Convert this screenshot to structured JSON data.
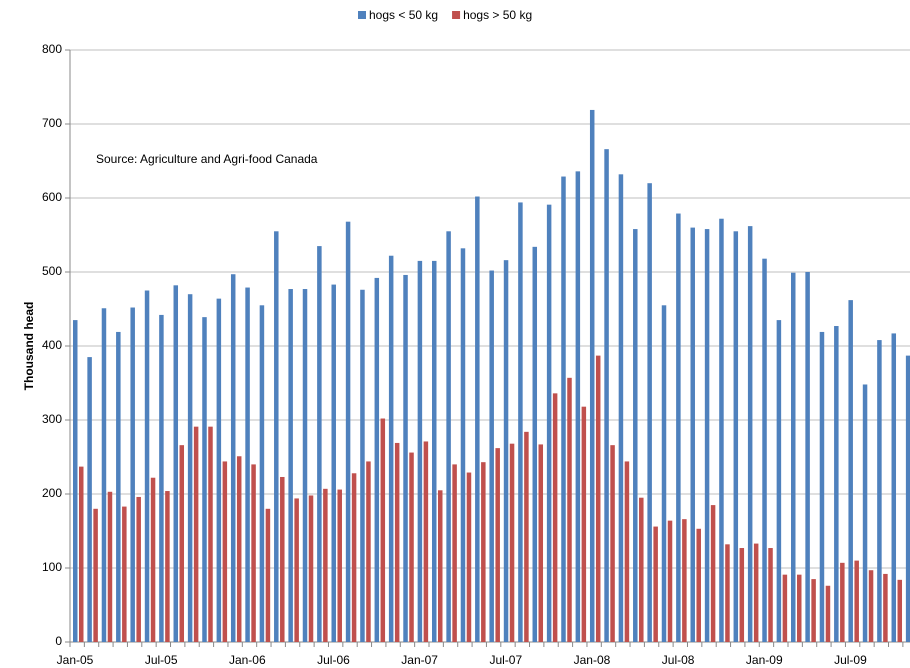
{
  "chart_data": {
    "type": "bar",
    "y_label": "Thousand head",
    "annotation": "Source: Agriculture and Agri-food Canada",
    "categories": [
      "Jan-05",
      null,
      null,
      null,
      null,
      null,
      "Jul-05",
      null,
      null,
      null,
      null,
      null,
      "Jan-06",
      null,
      null,
      null,
      null,
      null,
      "Jul-06",
      null,
      null,
      null,
      null,
      null,
      "Jan-07",
      null,
      null,
      null,
      null,
      null,
      "Jul-07",
      null,
      null,
      null,
      null,
      null,
      "Jan-08",
      null,
      null,
      null,
      null,
      null,
      "Jul-08",
      null,
      null,
      null,
      null,
      null,
      "Jan-09",
      null,
      null,
      null,
      null,
      null,
      "Jul-09",
      null,
      null,
      null,
      null
    ],
    "series": [
      {
        "name": "hogs < 50 kg",
        "color": "#4f81bd",
        "values": [
          435,
          385,
          451,
          419,
          452,
          475,
          442,
          482,
          470,
          439,
          464,
          497,
          479,
          455,
          555,
          477,
          477,
          535,
          483,
          568,
          476,
          492,
          522,
          496,
          515,
          515,
          555,
          532,
          602,
          502,
          516,
          594,
          534,
          591,
          629,
          636,
          719,
          666,
          632,
          558,
          620,
          455,
          579,
          560,
          558,
          572,
          555,
          562,
          518,
          435,
          499,
          500,
          419,
          427,
          462,
          348,
          408,
          417,
          387
        ]
      },
      {
        "name": "hogs > 50 kg",
        "color": "#c0504d",
        "values": [
          237,
          180,
          203,
          183,
          196,
          222,
          204,
          266,
          291,
          291,
          244,
          251,
          240,
          180,
          223,
          194,
          198,
          207,
          206,
          228,
          244,
          302,
          269,
          256,
          271,
          205,
          240,
          229,
          243,
          262,
          268,
          284,
          267,
          336,
          357,
          318,
          387,
          266,
          244,
          195,
          156,
          164,
          166,
          153,
          185,
          132,
          127,
          133,
          127,
          91,
          91,
          85,
          76,
          107,
          110,
          97,
          92,
          84,
          null
        ]
      }
    ],
    "ylim": [
      0,
      800
    ],
    "yticks": [
      0,
      100,
      200,
      300,
      400,
      500,
      600,
      700,
      800
    ],
    "grid": true,
    "legend": "top"
  }
}
